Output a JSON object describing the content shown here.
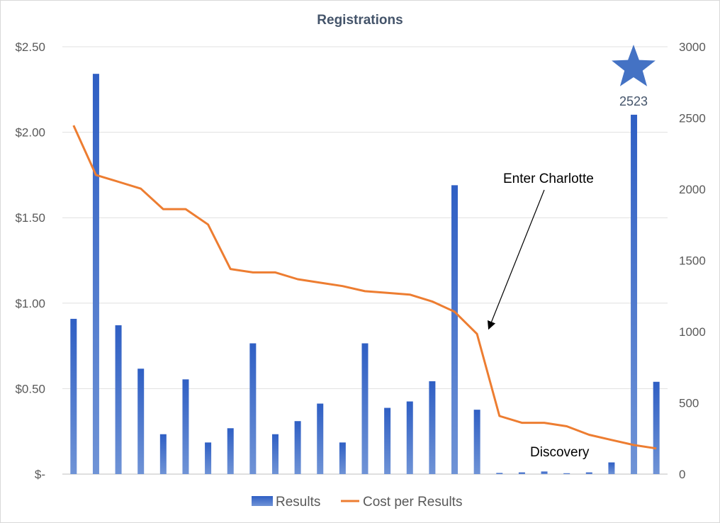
{
  "chart_data": {
    "type": "bar",
    "title": "Registrations",
    "series": [
      {
        "name": "Results",
        "type": "bar",
        "axis": "right",
        "color": "#4472c4",
        "values": [
          1090,
          2810,
          1045,
          740,
          280,
          665,
          222,
          322,
          918,
          280,
          372,
          495,
          222,
          918,
          465,
          510,
          652,
          2028,
          452,
          8,
          12,
          18,
          6,
          12,
          82,
          2523,
          648
        ]
      },
      {
        "name": "Cost per Results",
        "type": "line",
        "axis": "left",
        "color": "#ed7d31",
        "values": [
          2.04,
          1.75,
          1.71,
          1.67,
          1.55,
          1.55,
          1.46,
          1.2,
          1.18,
          1.18,
          1.14,
          1.12,
          1.1,
          1.07,
          1.06,
          1.05,
          1.01,
          0.95,
          0.82,
          0.34,
          0.3,
          0.3,
          0.28,
          0.23,
          0.2,
          0.17,
          0.15
        ]
      }
    ],
    "y_left": {
      "min": 0,
      "max": 2.5,
      "ticks": [
        "$-",
        "$0.50",
        "$1.00",
        "$1.50",
        "$2.00",
        "$2.50"
      ]
    },
    "y_right": {
      "min": 0,
      "max": 3000,
      "ticks": [
        "0",
        "500",
        "1000",
        "1500",
        "2000",
        "2500",
        "3000"
      ]
    },
    "grid": true,
    "legend": {
      "position": "bottom",
      "entries": [
        "Results",
        "Cost per Results"
      ]
    },
    "annotations": {
      "enter_charlotte": "Enter Charlotte",
      "discovery": "Discovery",
      "peak_value": "2523"
    }
  }
}
